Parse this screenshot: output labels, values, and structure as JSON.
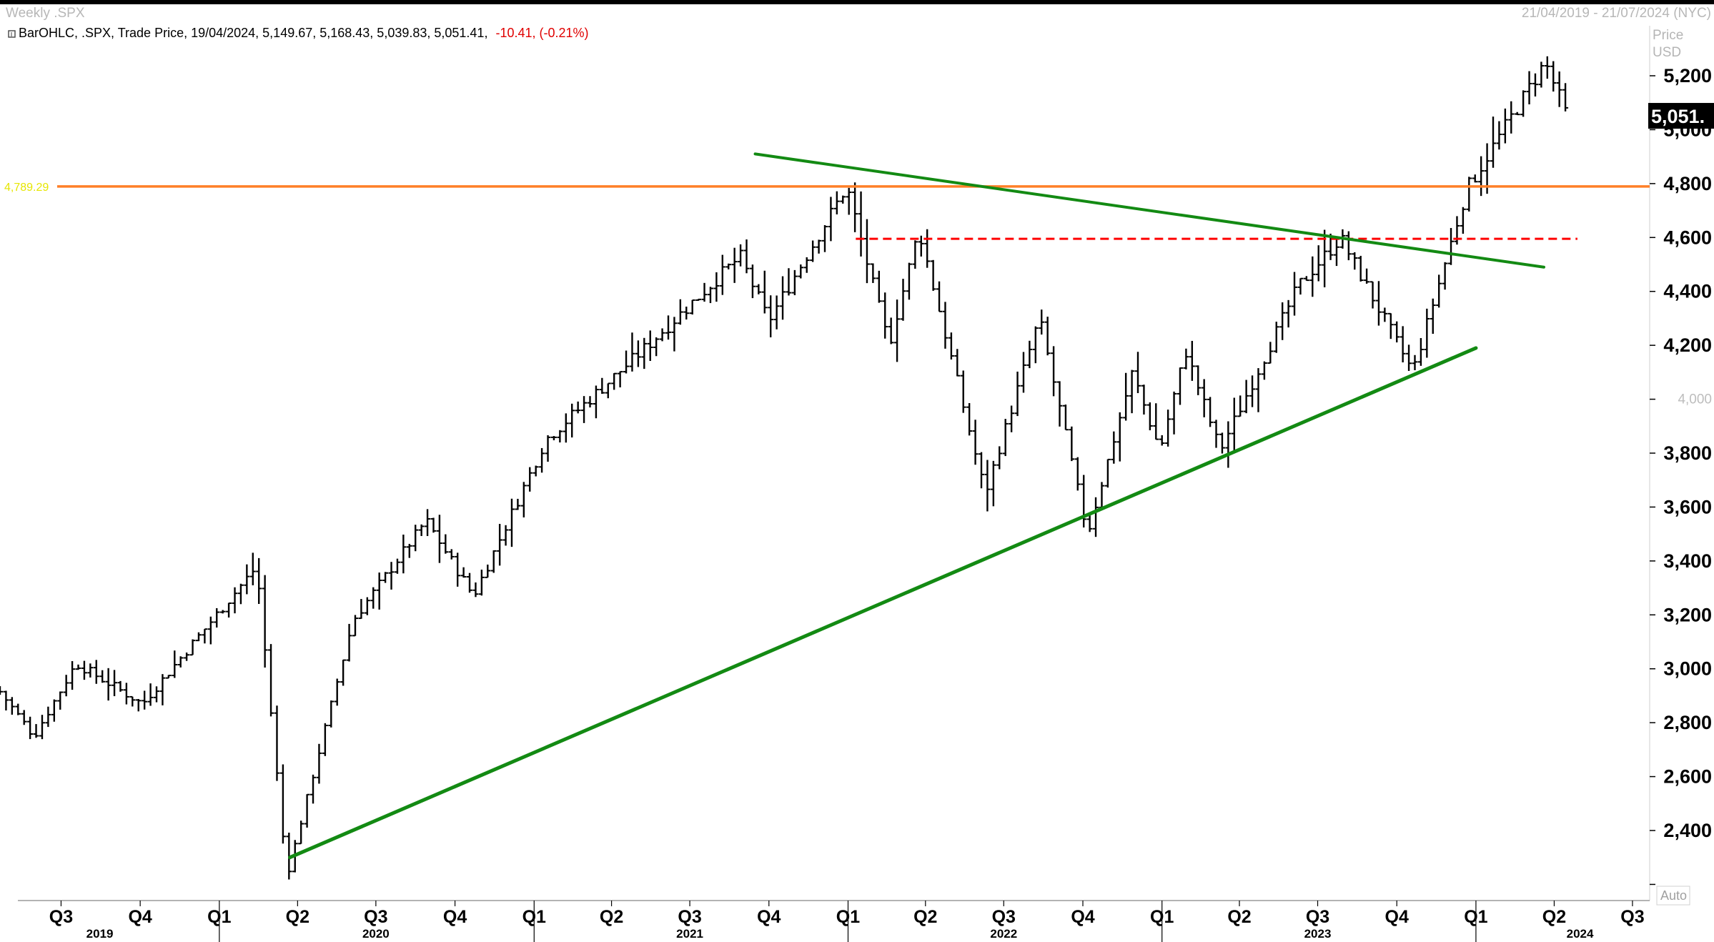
{
  "header": {
    "title_left": "Weekly .SPX",
    "date_range": "21/04/2019 - 21/07/2024 (NYC)",
    "ohlc_info": "BarOHLC, .SPX, Trade Price, 19/04/2024, 5,149.67, 5,168.43, 5,039.83, 5,051.41,",
    "change": "-10.41, (-0.21%)"
  },
  "axis": {
    "unit_line1": "Price",
    "unit_line2": "USD",
    "last_price_label": "5,051.",
    "auto_label": "Auto"
  },
  "colors": {
    "bars": "#000000",
    "trendline": "#138a13",
    "resistance_line": "#ff7f27",
    "dashed_line": "#ff0000",
    "hline_label": "#e6e600",
    "last_price_box": "#000000"
  },
  "chart_data": {
    "type": "ohlc_bar",
    "interval": "weekly",
    "symbol": ".SPX",
    "ylim": [
      2200,
      5300
    ],
    "y_ticks": [
      2400,
      2600,
      2800,
      3000,
      3200,
      3400,
      3600,
      3800,
      4000,
      4200,
      4400,
      4600,
      4800,
      5000,
      5200
    ],
    "y_tick_labels": [
      "2,400",
      "2,600",
      "2,800",
      "3,000",
      "3,200",
      "3,400",
      "3,600",
      "3,800",
      "4,000",
      "4,200",
      "4,400",
      "4,600",
      "4,800",
      "5,000",
      "5,200"
    ],
    "x_quarter_labels": [
      "Q3",
      "Q4",
      "Q1",
      "Q2",
      "Q3",
      "Q4",
      "Q1",
      "Q2",
      "Q3",
      "Q4",
      "Q1",
      "Q2",
      "Q3",
      "Q4",
      "Q1",
      "Q2",
      "Q3",
      "Q4",
      "Q1",
      "Q2",
      "Q3"
    ],
    "x_quarter_dates": [
      "2019-07-01",
      "2019-10-01",
      "2020-01-01",
      "2020-04-01",
      "2020-07-01",
      "2020-10-01",
      "2021-01-01",
      "2021-04-01",
      "2021-07-01",
      "2021-10-01",
      "2022-01-01",
      "2022-04-01",
      "2022-07-01",
      "2022-10-01",
      "2023-01-01",
      "2023-04-01",
      "2023-07-01",
      "2023-10-01",
      "2024-01-01",
      "2024-04-01",
      "2024-07-01"
    ],
    "x_year_labels": [
      "2019",
      "2020",
      "2021",
      "2022",
      "2023",
      "2024"
    ],
    "x_year_dates": [
      "2019-08-15",
      "2020-07-01",
      "2021-07-01",
      "2022-07-01",
      "2023-07-01",
      "2024-05-01"
    ],
    "x_range": [
      "2019-04-21",
      "2024-07-21"
    ],
    "last_price": 5051.41,
    "horizontal_line": {
      "value": 4789.29,
      "label": "4,789.29"
    },
    "dashed_line": {
      "value": 4595,
      "from": "2022-01-10",
      "to": "2024-04-28"
    },
    "trendlines": [
      {
        "name": "support",
        "from": {
          "x": "2020-03-23",
          "y": 2300
        },
        "to": {
          "x": "2024-01-01",
          "y": 4190
        }
      },
      {
        "name": "resistance",
        "from": {
          "x": "2021-09-15",
          "y": 4910
        },
        "to": {
          "x": "2024-03-20",
          "y": 4490
        }
      }
    ],
    "key_points": [
      {
        "x": "2019-04-21",
        "y": 2930
      },
      {
        "x": "2019-06-03",
        "y": 2750
      },
      {
        "x": "2019-07-22",
        "y": 3020
      },
      {
        "x": "2019-10-07",
        "y": 2870
      },
      {
        "x": "2020-02-17",
        "y": 3380
      },
      {
        "x": "2020-03-23",
        "y": 2230
      },
      {
        "x": "2020-06-08",
        "y": 3180
      },
      {
        "x": "2020-09-01",
        "y": 3550
      },
      {
        "x": "2020-10-26",
        "y": 3270
      },
      {
        "x": "2021-01-18",
        "y": 3850
      },
      {
        "x": "2021-05-10",
        "y": 4180
      },
      {
        "x": "2021-09-01",
        "y": 4530
      },
      {
        "x": "2021-10-04",
        "y": 4290
      },
      {
        "x": "2022-01-03",
        "y": 4790
      },
      {
        "x": "2022-02-21",
        "y": 4200
      },
      {
        "x": "2022-03-28",
        "y": 4630
      },
      {
        "x": "2022-06-13",
        "y": 3650
      },
      {
        "x": "2022-08-15",
        "y": 4300
      },
      {
        "x": "2022-10-10",
        "y": 3500
      },
      {
        "x": "2022-12-01",
        "y": 4100
      },
      {
        "x": "2023-01-02",
        "y": 3810
      },
      {
        "x": "2023-02-01",
        "y": 4180
      },
      {
        "x": "2023-03-13",
        "y": 3810
      },
      {
        "x": "2023-06-12",
        "y": 4420
      },
      {
        "x": "2023-07-31",
        "y": 4600
      },
      {
        "x": "2023-10-23",
        "y": 4100
      },
      {
        "x": "2023-12-25",
        "y": 4780
      },
      {
        "x": "2024-03-25",
        "y": 5250
      },
      {
        "x": "2024-04-19",
        "y": 5051
      }
    ]
  }
}
